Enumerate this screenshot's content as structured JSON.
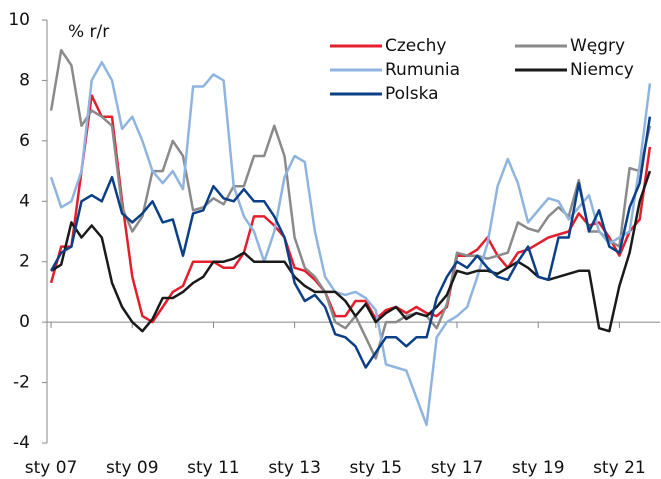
{
  "chart_data": {
    "type": "line",
    "y_unit_label": "% r/r",
    "x": [
      2007,
      2007.25,
      2007.5,
      2007.75,
      2008,
      2008.25,
      2008.5,
      2008.75,
      2009,
      2009.25,
      2009.5,
      2009.75,
      2010,
      2010.25,
      2010.5,
      2010.75,
      2011,
      2011.25,
      2011.5,
      2011.75,
      2012,
      2012.25,
      2012.5,
      2012.75,
      2013,
      2013.25,
      2013.5,
      2013.75,
      2014,
      2014.25,
      2014.5,
      2014.75,
      2015,
      2015.25,
      2015.5,
      2015.75,
      2016,
      2016.25,
      2016.5,
      2016.75,
      2017,
      2017.25,
      2017.5,
      2017.75,
      2018,
      2018.25,
      2018.5,
      2018.75,
      2019,
      2019.25,
      2019.5,
      2019.75,
      2020,
      2020.25,
      2020.5,
      2020.75,
      2021,
      2021.25,
      2021.5,
      2021.75
    ],
    "series": [
      {
        "name": "Czechy",
        "color": "#e31e2d",
        "values": [
          1.3,
          2.5,
          2.5,
          5,
          7.5,
          6.8,
          6.8,
          4,
          1.5,
          0.2,
          0,
          0.5,
          1,
          1.2,
          2,
          2,
          2,
          1.8,
          1.8,
          2.3,
          3.5,
          3.5,
          3.2,
          2.8,
          1.8,
          1.7,
          1.4,
          1.0,
          0.2,
          0.2,
          0.7,
          0.7,
          0.1,
          0.4,
          0.5,
          0.3,
          0.5,
          0.3,
          0.2,
          0.5,
          2.2,
          2.2,
          2.4,
          2.8,
          2.2,
          1.8,
          2.3,
          2.4,
          2.6,
          2.8,
          2.9,
          3.0,
          3.6,
          3.2,
          3.3,
          2.8,
          2.2,
          3.0,
          3.4,
          5.8
        ]
      },
      {
        "name": "Węgry",
        "color": "#8a8a8a",
        "values": [
          7,
          9,
          8.5,
          6.5,
          7.0,
          6.8,
          6.5,
          3.8,
          3.0,
          3.5,
          5.0,
          5.0,
          6.0,
          5.5,
          3.7,
          3.8,
          4.1,
          3.9,
          4.5,
          4.5,
          5.5,
          5.5,
          6.5,
          5.5,
          2.8,
          1.8,
          1.5,
          1.0,
          0.0,
          -0.2,
          0.2,
          -0.5,
          -1.2,
          0.0,
          0.0,
          0.2,
          0.3,
          0.2,
          -0.2,
          0.6,
          2.3,
          2.2,
          2.2,
          2.1,
          2.2,
          2.3,
          3.3,
          3.1,
          3.0,
          3.5,
          3.8,
          3.5,
          4.7,
          3.0,
          3.0,
          2.7,
          2.5,
          5.1,
          5.0,
          6.5
        ]
      },
      {
        "name": "Rumunia",
        "color": "#8fb4df",
        "values": [
          4.8,
          3.8,
          4,
          5,
          8.0,
          8.6,
          8.0,
          6.4,
          6.8,
          6.0,
          5.0,
          4.6,
          5.0,
          4.4,
          7.8,
          7.8,
          8.2,
          8.0,
          4.5,
          3.5,
          3.0,
          2.0,
          3.0,
          4.8,
          5.5,
          5.3,
          3.0,
          1.5,
          1.0,
          0.9,
          1.0,
          0.8,
          0.4,
          -1.4,
          -1.5,
          -1.6,
          -2.5,
          -3.4,
          -0.5,
          0.0,
          0.2,
          0.5,
          1.5,
          2.6,
          4.5,
          5.4,
          4.6,
          3.3,
          3.7,
          4.1,
          4.0,
          3.4,
          3.8,
          4.2,
          3.0,
          2.6,
          2.8,
          3.0,
          5.2,
          7.9
        ]
      },
      {
        "name": "Niemcy",
        "color": "#1a1a1a",
        "values": [
          1.7,
          1.9,
          3.3,
          2.8,
          3.2,
          2.8,
          1.3,
          0.5,
          0.0,
          -0.3,
          0.1,
          0.8,
          0.8,
          1.0,
          1.3,
          1.5,
          2.0,
          2.0,
          2.1,
          2.3,
          2.0,
          2.0,
          2.0,
          2.0,
          1.5,
          1.2,
          1.0,
          1.0,
          1.0,
          0.7,
          0.2,
          0.6,
          0.0,
          0.3,
          0.5,
          0.1,
          0.3,
          0.2,
          0.5,
          0.9,
          1.7,
          1.6,
          1.7,
          1.7,
          1.6,
          1.8,
          2.0,
          1.8,
          1.5,
          1.4,
          1.5,
          1.6,
          1.7,
          1.7,
          -0.2,
          -0.3,
          1.2,
          2.3,
          4.0,
          5.0
        ]
      },
      {
        "name": "Polska",
        "color": "#0b3f86",
        "values": [
          1.7,
          2.3,
          2.5,
          4.0,
          4.2,
          4.0,
          4.8,
          3.6,
          3.3,
          3.6,
          4.0,
          3.3,
          3.4,
          2.2,
          3.6,
          3.7,
          4.5,
          4.1,
          4.0,
          4.4,
          4.0,
          4.0,
          3.5,
          2.8,
          1.3,
          0.7,
          0.9,
          0.5,
          -0.4,
          -0.5,
          -0.8,
          -1.5,
          -1.0,
          -0.5,
          -0.5,
          -0.8,
          -0.5,
          -0.5,
          0.8,
          1.5,
          2.0,
          1.8,
          2.2,
          1.8,
          1.5,
          1.4,
          2.0,
          2.5,
          1.5,
          1.4,
          2.8,
          2.8,
          4.6,
          3.0,
          3.7,
          2.5,
          2.3,
          3.8,
          4.6,
          6.8
        ]
      }
    ],
    "xlim": [
      2006.9,
      2022.0
    ],
    "xticks": [
      {
        "value": 2007,
        "label": "sty 07"
      },
      {
        "value": 2009,
        "label": "sty 09"
      },
      {
        "value": 2011,
        "label": "sty 11"
      },
      {
        "value": 2013,
        "label": "sty 13"
      },
      {
        "value": 2015,
        "label": "sty 15"
      },
      {
        "value": 2017,
        "label": "sty 17"
      },
      {
        "value": 2019,
        "label": "sty 19"
      },
      {
        "value": 2021,
        "label": "sty 21"
      }
    ],
    "ylim": [
      -4,
      10
    ],
    "yticks": [
      -4,
      -2,
      0,
      2,
      4,
      6,
      8,
      10
    ],
    "grid": false
  }
}
